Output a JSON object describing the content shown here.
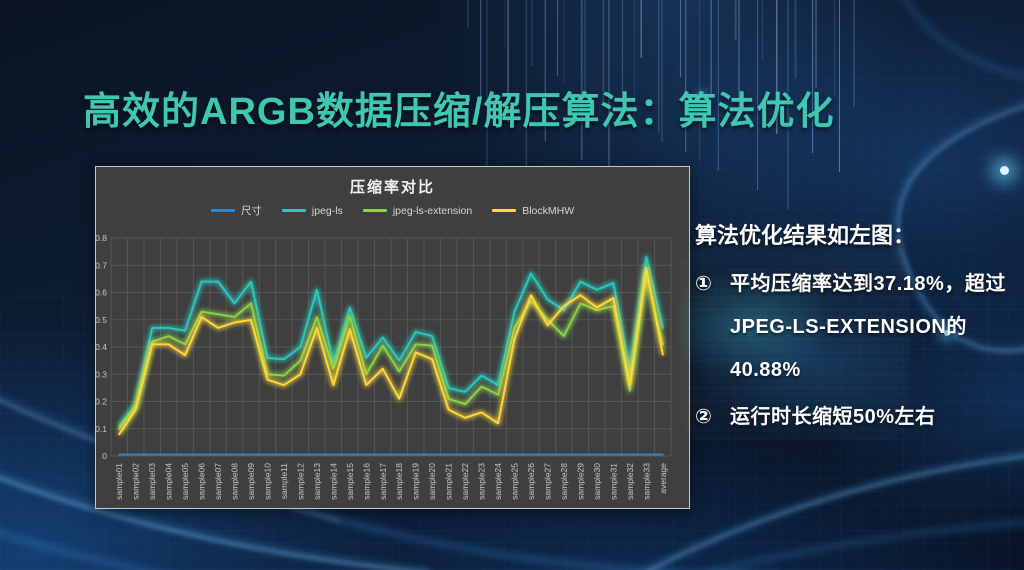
{
  "slide": {
    "title": "高效的ARGB数据压缩/解压算法：算法优化",
    "title_color": "#3fc7b2"
  },
  "right_panel": {
    "heading": "算法优化结果如左图：",
    "bullets": [
      {
        "marker": "①",
        "lines": [
          "平均压缩率达到37.18%，超过",
          "JPEG-LS-EXTENSION的",
          "40.88%"
        ]
      },
      {
        "marker": "②",
        "lines": [
          "运行时长缩短50%左右"
        ]
      }
    ]
  },
  "chart_data": {
    "type": "line",
    "title": "压缩率对比",
    "categories": [
      "sample01",
      "sample02",
      "sample03",
      "sample04",
      "sample05",
      "sample06",
      "sample07",
      "sample08",
      "sample09",
      "sample10",
      "sample11",
      "sample12",
      "sample13",
      "sample14",
      "sample15",
      "sample16",
      "sample17",
      "sample18",
      "sample19",
      "sample20",
      "sample21",
      "sample22",
      "sample23",
      "sample24",
      "sample25",
      "sample26",
      "sample27",
      "sample28",
      "sample29",
      "sample30",
      "sample31",
      "sample32",
      "sample33",
      "average"
    ],
    "series": [
      {
        "name": "尺寸",
        "color": "#2e86d1",
        "values": [
          0.005,
          0.005,
          0.005,
          0.005,
          0.005,
          0.005,
          0.005,
          0.005,
          0.005,
          0.005,
          0.005,
          0.005,
          0.005,
          0.005,
          0.005,
          0.005,
          0.005,
          0.005,
          0.005,
          0.005,
          0.005,
          0.005,
          0.005,
          0.005,
          0.005,
          0.005,
          0.005,
          0.005,
          0.005,
          0.005,
          0.005,
          0.005,
          0.005,
          0.005
        ]
      },
      {
        "name": "jpeg-ls",
        "color": "#2bc8be",
        "values": [
          0.11,
          0.19,
          0.47,
          0.47,
          0.46,
          0.64,
          0.64,
          0.56,
          0.64,
          0.36,
          0.355,
          0.4,
          0.61,
          0.34,
          0.545,
          0.36,
          0.435,
          0.35,
          0.455,
          0.44,
          0.25,
          0.235,
          0.295,
          0.26,
          0.53,
          0.67,
          0.575,
          0.535,
          0.64,
          0.61,
          0.635,
          0.31,
          0.73,
          0.47
        ]
      },
      {
        "name": "jpeg-ls-extension",
        "color": "#8ed24b",
        "values": [
          0.1,
          0.18,
          0.42,
          0.44,
          0.41,
          0.53,
          0.52,
          0.51,
          0.56,
          0.3,
          0.295,
          0.35,
          0.51,
          0.32,
          0.515,
          0.3,
          0.405,
          0.31,
          0.41,
          0.405,
          0.21,
          0.19,
          0.255,
          0.225,
          0.47,
          0.57,
          0.5,
          0.44,
          0.56,
          0.535,
          0.55,
          0.24,
          0.67,
          0.409
        ]
      },
      {
        "name": "BlockMHW",
        "color": "#ffd93b",
        "values": [
          0.08,
          0.17,
          0.41,
          0.41,
          0.37,
          0.51,
          0.47,
          0.49,
          0.5,
          0.28,
          0.26,
          0.3,
          0.47,
          0.26,
          0.465,
          0.26,
          0.32,
          0.21,
          0.38,
          0.355,
          0.17,
          0.14,
          0.16,
          0.12,
          0.43,
          0.59,
          0.48,
          0.55,
          0.59,
          0.545,
          0.58,
          0.26,
          0.69,
          0.372
        ]
      }
    ],
    "ylim": [
      0,
      0.8
    ],
    "ytick_labels": [
      "0",
      "0.1",
      "0.2",
      "0.3",
      "0.4",
      "0.5",
      "0.6",
      "0.7",
      "0.8"
    ],
    "grid": true,
    "legend_position": "top",
    "panel_bg": "#3f3f3f",
    "grid_color": "#575757",
    "tick_color": "#c8c8c8"
  }
}
